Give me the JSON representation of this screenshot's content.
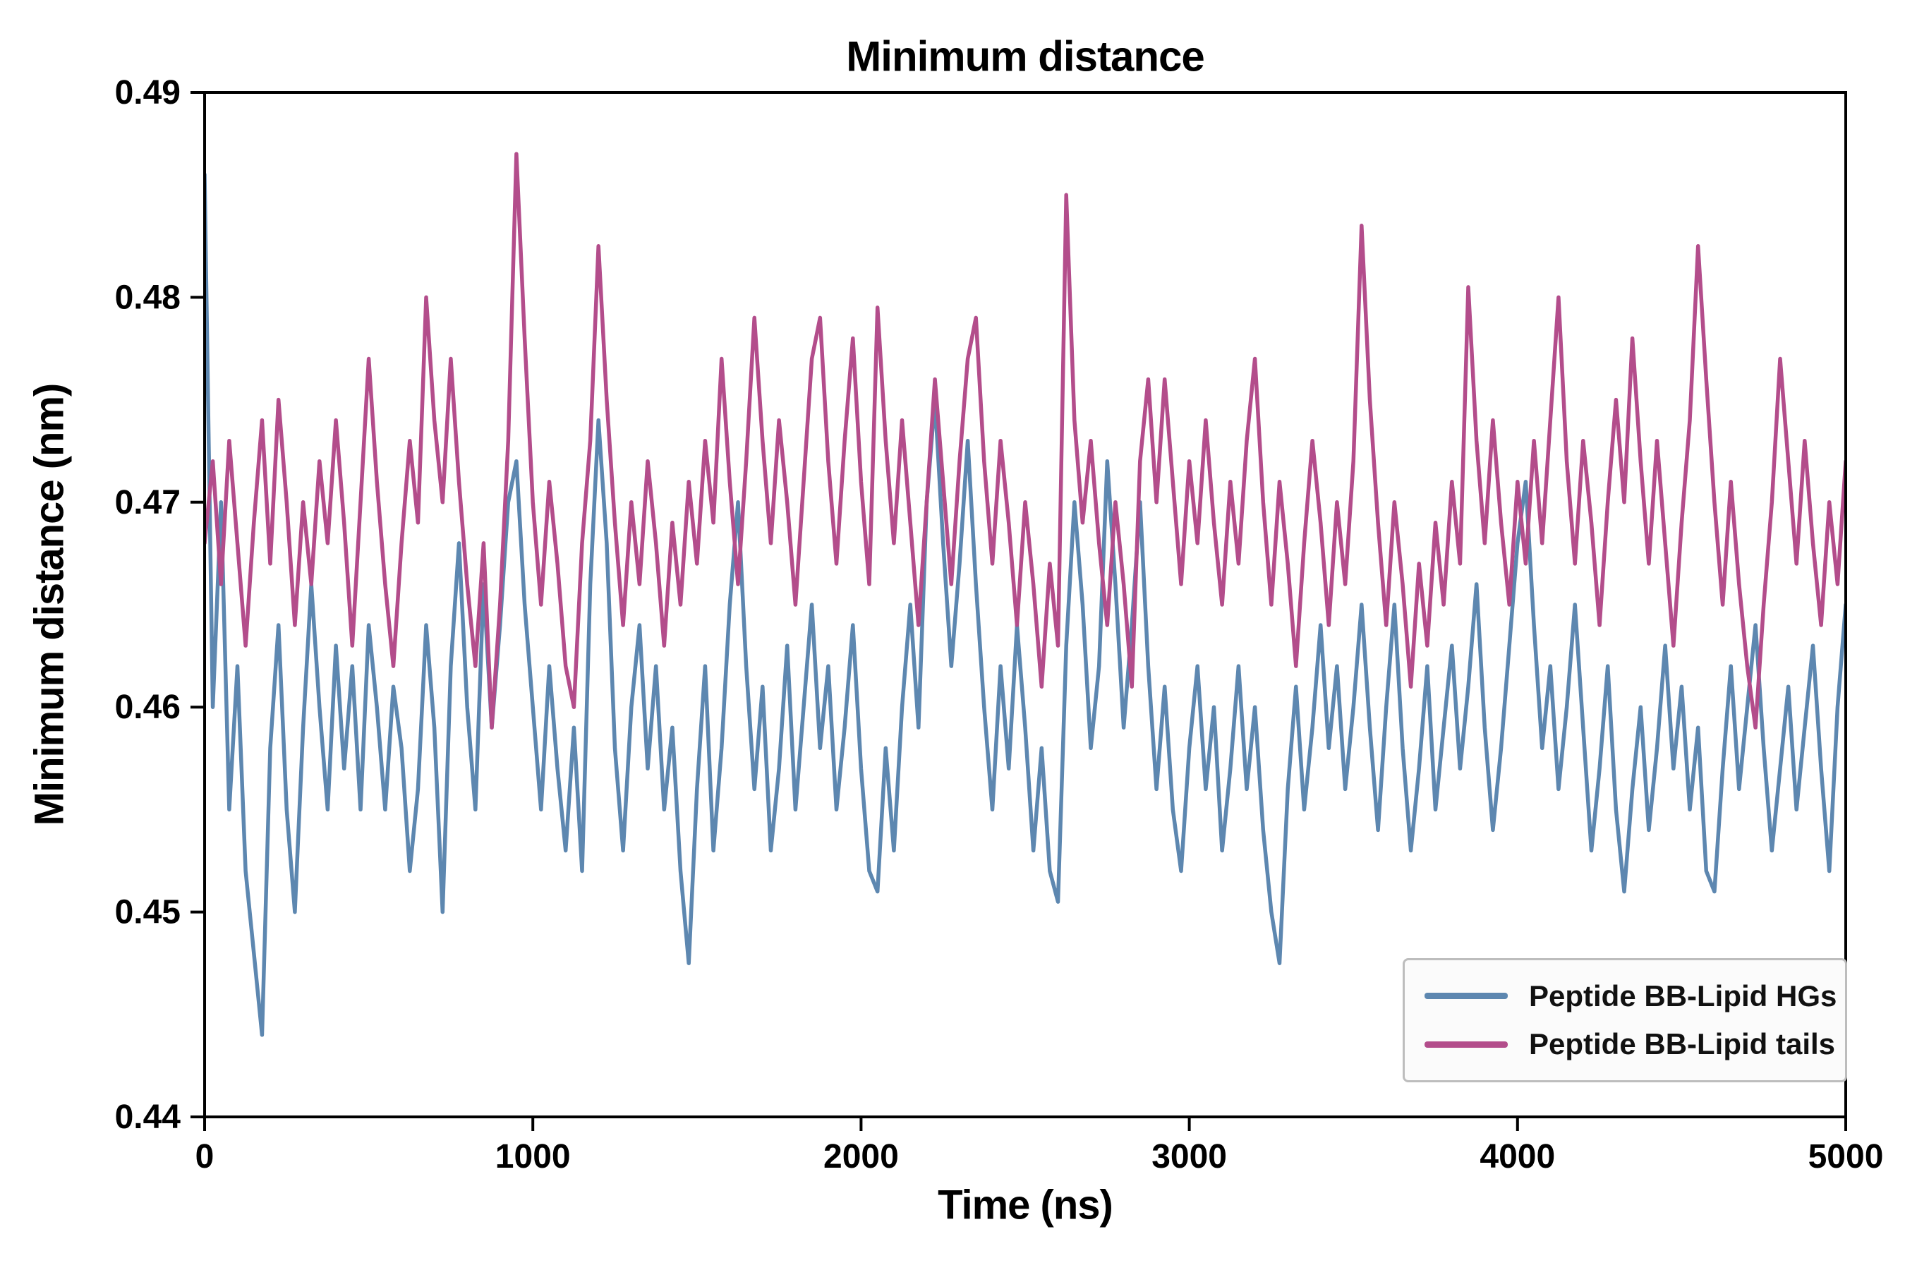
{
  "figure": {
    "title": "Minimum distance",
    "xlabel": "Time (ns)",
    "ylabel": "Minimum distance (nm)"
  },
  "legend": {
    "entries": [
      {
        "label": "Peptide BB-Lipid HGs",
        "color": "#5d87b0"
      },
      {
        "label": "Peptide BB-Lipid tails",
        "color": "#b34d8b"
      }
    ]
  },
  "colors": {
    "axis": "#000000",
    "background": "#ffffff",
    "series_blue": "#5d87b0",
    "series_pink": "#b34d8b"
  },
  "chart_data": {
    "type": "line",
    "title": "Minimum distance",
    "xlabel": "Time (ns)",
    "ylabel": "Minimum distance (nm)",
    "xlim": [
      0,
      5000
    ],
    "ylim": [
      0.44,
      0.49
    ],
    "xticks": [
      0,
      1000,
      2000,
      3000,
      4000,
      5000
    ],
    "xtick_labels": [
      "0",
      "1000",
      "2000",
      "3000",
      "4000",
      "5000"
    ],
    "yticks": [
      0.44,
      0.45,
      0.46,
      0.47,
      0.48,
      0.49
    ],
    "ytick_labels": [
      "0.44",
      "0.45",
      "0.46",
      "0.47",
      "0.48",
      "0.49"
    ],
    "grid": false,
    "legend_position": "lower right",
    "x_start": 0,
    "x_step": 25,
    "series": [
      {
        "name": "Peptide BB-Lipid HGs",
        "color": "#5d87b0",
        "values": [
          0.486,
          0.46,
          0.47,
          0.455,
          0.462,
          0.452,
          0.448,
          0.444,
          0.458,
          0.464,
          0.455,
          0.45,
          0.459,
          0.466,
          0.46,
          0.455,
          0.463,
          0.457,
          0.462,
          0.455,
          0.464,
          0.46,
          0.455,
          0.461,
          0.458,
          0.452,
          0.456,
          0.464,
          0.459,
          0.45,
          0.462,
          0.468,
          0.46,
          0.455,
          0.466,
          0.459,
          0.464,
          0.47,
          0.472,
          0.465,
          0.46,
          0.455,
          0.462,
          0.457,
          0.453,
          0.459,
          0.452,
          0.466,
          0.474,
          0.468,
          0.458,
          0.453,
          0.46,
          0.464,
          0.457,
          0.462,
          0.455,
          0.459,
          0.452,
          0.4475,
          0.456,
          0.462,
          0.453,
          0.458,
          0.465,
          0.47,
          0.462,
          0.456,
          0.461,
          0.453,
          0.457,
          0.463,
          0.455,
          0.46,
          0.465,
          0.458,
          0.462,
          0.455,
          0.459,
          0.464,
          0.457,
          0.452,
          0.451,
          0.458,
          0.453,
          0.46,
          0.465,
          0.459,
          0.47,
          0.475,
          0.468,
          0.462,
          0.467,
          0.473,
          0.466,
          0.46,
          0.455,
          0.462,
          0.457,
          0.464,
          0.459,
          0.453,
          0.458,
          0.452,
          0.4505,
          0.463,
          0.47,
          0.465,
          0.458,
          0.462,
          0.472,
          0.466,
          0.459,
          0.464,
          0.47,
          0.462,
          0.456,
          0.461,
          0.455,
          0.452,
          0.458,
          0.462,
          0.456,
          0.46,
          0.453,
          0.457,
          0.462,
          0.456,
          0.46,
          0.454,
          0.45,
          0.4475,
          0.456,
          0.461,
          0.455,
          0.459,
          0.464,
          0.458,
          0.462,
          0.456,
          0.46,
          0.465,
          0.459,
          0.454,
          0.46,
          0.465,
          0.458,
          0.453,
          0.457,
          0.462,
          0.455,
          0.459,
          0.463,
          0.457,
          0.461,
          0.466,
          0.459,
          0.454,
          0.458,
          0.463,
          0.468,
          0.471,
          0.464,
          0.458,
          0.462,
          0.456,
          0.46,
          0.465,
          0.459,
          0.453,
          0.457,
          0.462,
          0.455,
          0.451,
          0.456,
          0.46,
          0.454,
          0.458,
          0.463,
          0.457,
          0.461,
          0.455,
          0.459,
          0.452,
          0.451,
          0.457,
          0.462,
          0.456,
          0.46,
          0.464,
          0.458,
          0.453,
          0.457,
          0.461,
          0.455,
          0.459,
          0.463,
          0.457,
          0.452,
          0.46,
          0.465
        ]
      },
      {
        "name": "Peptide BB-Lipid tails",
        "color": "#b34d8b",
        "values": [
          0.468,
          0.472,
          0.466,
          0.473,
          0.468,
          0.463,
          0.469,
          0.474,
          0.467,
          0.475,
          0.47,
          0.464,
          0.47,
          0.466,
          0.472,
          0.468,
          0.474,
          0.469,
          0.463,
          0.47,
          0.477,
          0.471,
          0.466,
          0.462,
          0.468,
          0.473,
          0.469,
          0.48,
          0.474,
          0.47,
          0.477,
          0.471,
          0.466,
          0.462,
          0.468,
          0.459,
          0.465,
          0.473,
          0.487,
          0.478,
          0.47,
          0.465,
          0.471,
          0.467,
          0.462,
          0.46,
          0.468,
          0.473,
          0.4825,
          0.475,
          0.469,
          0.464,
          0.47,
          0.466,
          0.472,
          0.468,
          0.463,
          0.469,
          0.465,
          0.471,
          0.467,
          0.473,
          0.469,
          0.477,
          0.471,
          0.466,
          0.472,
          0.479,
          0.473,
          0.468,
          0.474,
          0.47,
          0.465,
          0.471,
          0.477,
          0.479,
          0.472,
          0.467,
          0.473,
          0.478,
          0.471,
          0.466,
          0.4795,
          0.473,
          0.468,
          0.474,
          0.469,
          0.464,
          0.47,
          0.476,
          0.471,
          0.466,
          0.472,
          0.477,
          0.479,
          0.472,
          0.467,
          0.473,
          0.469,
          0.464,
          0.47,
          0.466,
          0.461,
          0.467,
          0.463,
          0.485,
          0.474,
          0.469,
          0.473,
          0.468,
          0.464,
          0.47,
          0.466,
          0.461,
          0.472,
          0.476,
          0.47,
          0.476,
          0.471,
          0.466,
          0.472,
          0.468,
          0.474,
          0.469,
          0.465,
          0.471,
          0.467,
          0.473,
          0.477,
          0.47,
          0.465,
          0.471,
          0.467,
          0.462,
          0.468,
          0.473,
          0.469,
          0.464,
          0.47,
          0.466,
          0.472,
          0.4835,
          0.475,
          0.469,
          0.464,
          0.47,
          0.466,
          0.461,
          0.467,
          0.463,
          0.469,
          0.465,
          0.471,
          0.467,
          0.4805,
          0.473,
          0.468,
          0.474,
          0.469,
          0.465,
          0.471,
          0.467,
          0.473,
          0.468,
          0.474,
          0.48,
          0.472,
          0.467,
          0.473,
          0.469,
          0.464,
          0.47,
          0.475,
          0.47,
          0.478,
          0.472,
          0.467,
          0.473,
          0.468,
          0.463,
          0.469,
          0.474,
          0.4825,
          0.476,
          0.47,
          0.465,
          0.471,
          0.466,
          0.462,
          0.459,
          0.465,
          0.47,
          0.477,
          0.472,
          0.467,
          0.473,
          0.468,
          0.464,
          0.47,
          0.466,
          0.472
        ]
      }
    ]
  }
}
